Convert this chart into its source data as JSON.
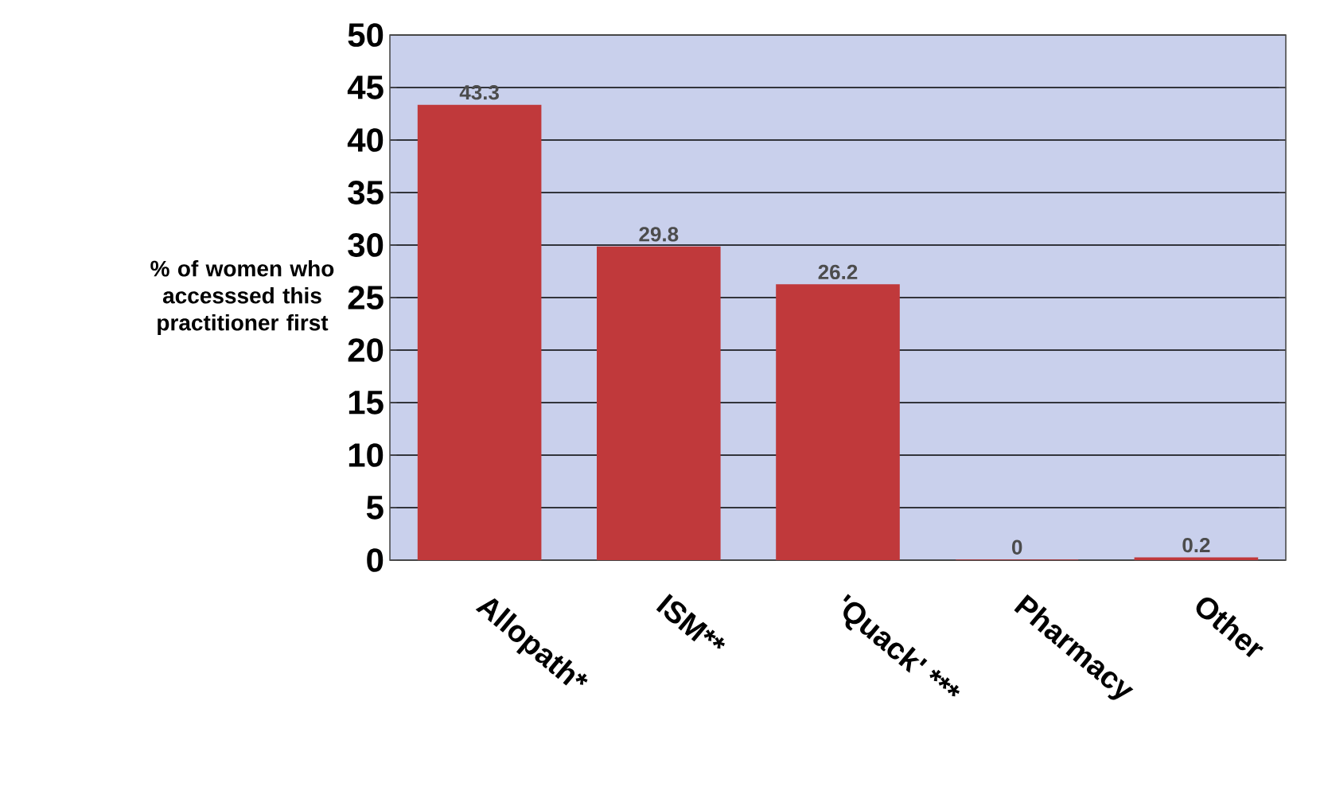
{
  "chart_data": {
    "type": "bar",
    "ylabel": "% of women who accesssed this practitioner first",
    "categories": [
      "Allopath*",
      "ISM**",
      "'Quack' ***",
      "Pharmacy",
      "Other"
    ],
    "values": [
      43.3,
      29.8,
      26.2,
      0,
      0.2
    ],
    "color": "#c0393b",
    "ylim": [
      0,
      50
    ],
    "yticks": [
      0,
      5,
      10,
      15,
      20,
      25,
      30,
      35,
      40,
      45,
      50
    ],
    "grid": "y",
    "data_labels": true
  }
}
